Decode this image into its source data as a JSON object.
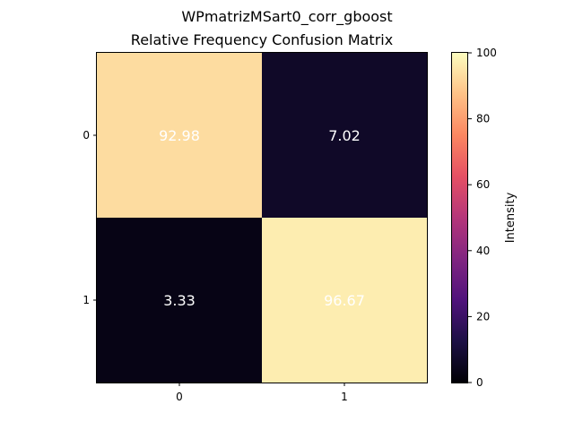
{
  "suptitle": "WPmatrizMSart0_corr_gboost",
  "chart_data": {
    "type": "heatmap",
    "title": "Relative Frequency Confusion Matrix",
    "xlabel": "",
    "ylabel": "",
    "x_categories": [
      "0",
      "1"
    ],
    "y_categories": [
      "0",
      "1"
    ],
    "values": [
      [
        92.98,
        7.02
      ],
      [
        3.33,
        96.67
      ]
    ],
    "cell_labels": [
      [
        "92.98",
        "7.02"
      ],
      [
        "3.33",
        "96.67"
      ]
    ],
    "colormap": "magma",
    "colorbar": {
      "label": "Intensity",
      "range": [
        0,
        100
      ],
      "ticks": [
        "0",
        "20",
        "40",
        "60",
        "80",
        "100"
      ]
    },
    "annotation_color": "#ffffff",
    "grid": false,
    "legend": "none"
  }
}
